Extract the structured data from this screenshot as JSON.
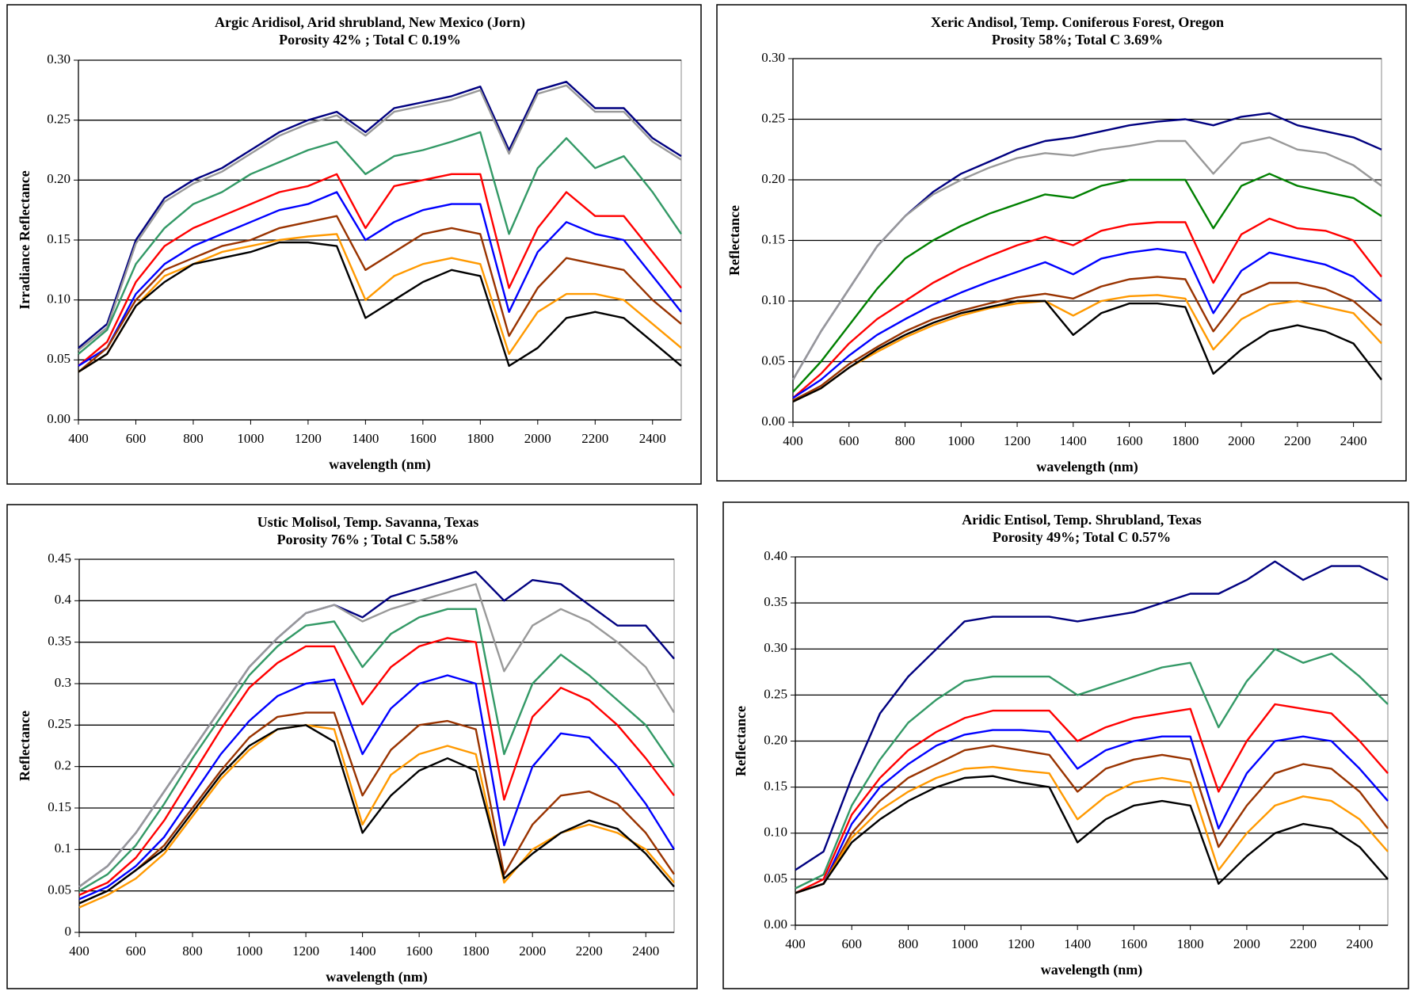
{
  "chart_data": [
    {
      "type": "line",
      "title": "Argic Aridisol, Arid shrubland, New Mexico (Jorn)",
      "subtitle": "Porosity 42% ;  Total C 0.19%",
      "x_label": "wavelength (nm)",
      "y_label": "Irradiance Reflectance",
      "x": [
        400,
        500,
        600,
        700,
        800,
        900,
        1000,
        1100,
        1200,
        1300,
        1400,
        1500,
        1600,
        1700,
        1800,
        1900,
        2000,
        2100,
        2200,
        2300,
        2400,
        2500
      ],
      "xlim": [
        400,
        2500
      ],
      "xticks": [
        400,
        600,
        800,
        1000,
        1200,
        1400,
        1600,
        1800,
        2000,
        2200,
        2400
      ],
      "ylim": [
        0,
        0.3
      ],
      "yticks": [
        {
          "value": 0,
          "label": "0.00"
        },
        0.05,
        {
          "value": 0.1,
          "label": "0.10"
        },
        0.15,
        {
          "value": 0.2,
          "label": "0.20"
        },
        0.25,
        {
          "value": 0.3,
          "label": "0.30"
        }
      ],
      "grid": true,
      "series": [
        {
          "color": "#000080",
          "values": [
            0.06,
            0.08,
            0.15,
            0.185,
            0.2,
            0.21,
            0.225,
            0.24,
            0.25,
            0.257,
            0.24,
            0.26,
            0.265,
            0.27,
            0.278,
            0.225,
            0.275,
            0.282,
            0.26,
            0.26,
            0.235,
            0.22
          ]
        },
        {
          "color": "#999999",
          "values": [
            0.058,
            0.077,
            0.147,
            0.182,
            0.197,
            0.207,
            0.222,
            0.237,
            0.247,
            0.254,
            0.237,
            0.257,
            0.262,
            0.267,
            0.275,
            0.222,
            0.272,
            0.279,
            0.257,
            0.257,
            0.232,
            0.217
          ]
        },
        {
          "color": "#339966",
          "values": [
            0.055,
            0.075,
            0.13,
            0.16,
            0.18,
            0.19,
            0.205,
            0.215,
            0.225,
            0.232,
            0.205,
            0.22,
            0.225,
            0.232,
            0.24,
            0.155,
            0.21,
            0.235,
            0.21,
            0.22,
            0.19,
            0.155
          ]
        },
        {
          "color": "#ff0000",
          "values": [
            0.045,
            0.065,
            0.115,
            0.145,
            0.16,
            0.17,
            0.18,
            0.19,
            0.195,
            0.205,
            0.16,
            0.195,
            0.2,
            0.205,
            0.205,
            0.11,
            0.16,
            0.19,
            0.17,
            0.17,
            0.14,
            0.11
          ]
        },
        {
          "color": "#0000ff",
          "values": [
            0.045,
            0.06,
            0.105,
            0.13,
            0.145,
            0.155,
            0.165,
            0.175,
            0.18,
            0.19,
            0.15,
            0.165,
            0.175,
            0.18,
            0.18,
            0.09,
            0.14,
            0.165,
            0.155,
            0.15,
            0.12,
            0.09
          ]
        },
        {
          "color": "#993300",
          "values": [
            0.04,
            0.06,
            0.1,
            0.125,
            0.135,
            0.145,
            0.15,
            0.16,
            0.165,
            0.17,
            0.125,
            0.14,
            0.155,
            0.16,
            0.155,
            0.07,
            0.11,
            0.135,
            0.13,
            0.125,
            0.1,
            0.08
          ]
        },
        {
          "color": "#ff9900",
          "values": [
            0.04,
            0.055,
            0.095,
            0.12,
            0.13,
            0.14,
            0.145,
            0.15,
            0.153,
            0.155,
            0.1,
            0.12,
            0.13,
            0.135,
            0.13,
            0.055,
            0.09,
            0.105,
            0.105,
            0.1,
            0.08,
            0.06
          ]
        },
        {
          "color": "#000000",
          "values": [
            0.04,
            0.055,
            0.095,
            0.115,
            0.13,
            0.135,
            0.14,
            0.148,
            0.148,
            0.145,
            0.085,
            0.1,
            0.115,
            0.125,
            0.12,
            0.045,
            0.06,
            0.085,
            0.09,
            0.085,
            0.065,
            0.045
          ]
        }
      ]
    },
    {
      "type": "line",
      "title": "Xeric Andisol, Temp. Coniferous Forest, Oregon",
      "subtitle": "Prosity  58%;  Total C  3.69%",
      "x_label": "wavelength (nm)",
      "y_label": "Reflectance",
      "x": [
        400,
        500,
        600,
        700,
        800,
        900,
        1000,
        1100,
        1200,
        1300,
        1400,
        1500,
        1600,
        1700,
        1800,
        1900,
        2000,
        2100,
        2200,
        2300,
        2400,
        2500
      ],
      "xlim": [
        400,
        2500
      ],
      "xticks": [
        400,
        600,
        800,
        1000,
        1200,
        1400,
        1600,
        1800,
        2000,
        2200,
        2400
      ],
      "ylim": [
        0,
        0.3
      ],
      "yticks": [
        {
          "value": 0,
          "label": "0.00"
        },
        0.05,
        {
          "value": 0.1,
          "label": "0.10"
        },
        0.15,
        {
          "value": 0.2,
          "label": "0.20"
        },
        0.25,
        {
          "value": 0.3,
          "label": "0.30"
        }
      ],
      "grid": true,
      "series": [
        {
          "color": "#000080",
          "values": [
            0.035,
            0.075,
            0.11,
            0.145,
            0.17,
            0.19,
            0.205,
            0.215,
            0.225,
            0.232,
            0.235,
            0.24,
            0.245,
            0.248,
            0.25,
            0.245,
            0.252,
            0.255,
            0.245,
            0.24,
            0.235,
            0.225
          ]
        },
        {
          "color": "#999999",
          "values": [
            0.035,
            0.075,
            0.11,
            0.145,
            0.17,
            0.188,
            0.2,
            0.21,
            0.218,
            0.222,
            0.22,
            0.225,
            0.228,
            0.232,
            0.232,
            0.205,
            0.23,
            0.235,
            0.225,
            0.222,
            0.212,
            0.195
          ]
        },
        {
          "color": "#008000",
          "values": [
            0.025,
            0.05,
            0.08,
            0.11,
            0.135,
            0.15,
            0.162,
            0.172,
            0.18,
            0.188,
            0.185,
            0.195,
            0.2,
            0.2,
            0.2,
            0.16,
            0.195,
            0.205,
            0.195,
            0.19,
            0.185,
            0.17
          ]
        },
        {
          "color": "#ff0000",
          "values": [
            0.02,
            0.04,
            0.065,
            0.085,
            0.1,
            0.115,
            0.127,
            0.137,
            0.146,
            0.153,
            0.146,
            0.158,
            0.163,
            0.165,
            0.165,
            0.115,
            0.155,
            0.168,
            0.16,
            0.158,
            0.15,
            0.12
          ]
        },
        {
          "color": "#0000ff",
          "values": [
            0.02,
            0.035,
            0.055,
            0.072,
            0.085,
            0.097,
            0.107,
            0.116,
            0.124,
            0.132,
            0.122,
            0.135,
            0.14,
            0.143,
            0.14,
            0.09,
            0.125,
            0.14,
            0.135,
            0.13,
            0.12,
            0.1
          ]
        },
        {
          "color": "#993300",
          "values": [
            0.018,
            0.03,
            0.048,
            0.062,
            0.075,
            0.085,
            0.092,
            0.098,
            0.103,
            0.106,
            0.102,
            0.112,
            0.118,
            0.12,
            0.118,
            0.075,
            0.105,
            0.115,
            0.115,
            0.11,
            0.1,
            0.08
          ]
        },
        {
          "color": "#ff9900",
          "values": [
            0.017,
            0.028,
            0.045,
            0.058,
            0.07,
            0.08,
            0.088,
            0.094,
            0.098,
            0.1,
            0.088,
            0.1,
            0.104,
            0.105,
            0.102,
            0.06,
            0.085,
            0.097,
            0.1,
            0.095,
            0.09,
            0.065
          ]
        },
        {
          "color": "#000000",
          "values": [
            0.017,
            0.028,
            0.045,
            0.06,
            0.072,
            0.082,
            0.09,
            0.095,
            0.1,
            0.1,
            0.072,
            0.09,
            0.098,
            0.098,
            0.095,
            0.04,
            0.06,
            0.075,
            0.08,
            0.075,
            0.065,
            0.035
          ]
        }
      ]
    },
    {
      "type": "line",
      "title": "Ustic Molisol, Temp. Savanna, Texas",
      "subtitle": "Porosity 76% ;  Total C 5.58%",
      "x_label": "wavelength (nm)",
      "y_label": "Reflectance",
      "x": [
        400,
        500,
        600,
        700,
        800,
        900,
        1000,
        1100,
        1200,
        1300,
        1400,
        1500,
        1600,
        1700,
        1800,
        1900,
        2000,
        2100,
        2200,
        2300,
        2400,
        2500
      ],
      "xlim": [
        400,
        2500
      ],
      "xticks": [
        400,
        600,
        800,
        1000,
        1200,
        1400,
        1600,
        1800,
        2000,
        2200,
        2400
      ],
      "ylim": [
        0,
        0.45
      ],
      "yticks": [
        0,
        0.05,
        0.1,
        0.15,
        0.2,
        0.25,
        0.3,
        0.35,
        0.4,
        0.45
      ],
      "grid": true,
      "series": [
        {
          "color": "#000080",
          "values": [
            0.055,
            0.08,
            0.12,
            0.17,
            0.22,
            0.27,
            0.32,
            0.355,
            0.385,
            0.395,
            0.38,
            0.405,
            0.415,
            0.425,
            0.435,
            0.4,
            0.425,
            0.42,
            0.395,
            0.37,
            0.37,
            0.33
          ]
        },
        {
          "color": "#999999",
          "values": [
            0.055,
            0.08,
            0.12,
            0.17,
            0.22,
            0.27,
            0.32,
            0.355,
            0.385,
            0.395,
            0.375,
            0.39,
            0.4,
            0.41,
            0.42,
            0.315,
            0.37,
            0.39,
            0.375,
            0.35,
            0.32,
            0.265
          ]
        },
        {
          "color": "#339966",
          "values": [
            0.05,
            0.07,
            0.105,
            0.155,
            0.21,
            0.26,
            0.31,
            0.345,
            0.37,
            0.375,
            0.32,
            0.36,
            0.38,
            0.39,
            0.39,
            0.215,
            0.3,
            0.335,
            0.31,
            0.28,
            0.25,
            0.2
          ]
        },
        {
          "color": "#ff0000",
          "values": [
            0.045,
            0.06,
            0.09,
            0.135,
            0.19,
            0.245,
            0.295,
            0.325,
            0.345,
            0.345,
            0.275,
            0.32,
            0.345,
            0.355,
            0.35,
            0.16,
            0.26,
            0.295,
            0.28,
            0.25,
            0.21,
            0.165
          ]
        },
        {
          "color": "#0000ff",
          "values": [
            0.04,
            0.055,
            0.08,
            0.115,
            0.165,
            0.215,
            0.255,
            0.285,
            0.3,
            0.305,
            0.215,
            0.27,
            0.3,
            0.31,
            0.3,
            0.105,
            0.2,
            0.24,
            0.235,
            0.2,
            0.155,
            0.1
          ]
        },
        {
          "color": "#993300",
          "values": [
            0.035,
            0.05,
            0.075,
            0.105,
            0.15,
            0.195,
            0.235,
            0.26,
            0.265,
            0.265,
            0.165,
            0.22,
            0.25,
            0.255,
            0.245,
            0.07,
            0.13,
            0.165,
            0.17,
            0.155,
            0.12,
            0.07
          ]
        },
        {
          "color": "#ff9900",
          "values": [
            0.03,
            0.045,
            0.065,
            0.095,
            0.14,
            0.185,
            0.22,
            0.245,
            0.25,
            0.245,
            0.13,
            0.19,
            0.215,
            0.225,
            0.215,
            0.06,
            0.1,
            0.12,
            0.13,
            0.12,
            0.1,
            0.06
          ]
        },
        {
          "color": "#000000",
          "values": [
            0.035,
            0.05,
            0.075,
            0.1,
            0.145,
            0.19,
            0.225,
            0.245,
            0.25,
            0.23,
            0.12,
            0.165,
            0.195,
            0.21,
            0.195,
            0.065,
            0.095,
            0.12,
            0.135,
            0.125,
            0.095,
            0.055
          ]
        }
      ]
    },
    {
      "type": "line",
      "title": "Aridic Entisol, Temp. Shrubland, Texas",
      "subtitle": "Porosity 49%;  Total C 0.57%",
      "x_label": "wavelength (nm)",
      "y_label": "Reflectance",
      "x": [
        400,
        500,
        600,
        700,
        800,
        900,
        1000,
        1100,
        1200,
        1300,
        1400,
        1500,
        1600,
        1700,
        1800,
        1900,
        2000,
        2100,
        2200,
        2300,
        2400,
        2500
      ],
      "xlim": [
        400,
        2500
      ],
      "xticks": [
        400,
        600,
        800,
        1000,
        1200,
        1400,
        1600,
        1800,
        2000,
        2200,
        2400
      ],
      "ylim": [
        0,
        0.4
      ],
      "yticks": [
        {
          "value": 0,
          "label": "0.00"
        },
        0.05,
        {
          "value": 0.1,
          "label": "0.10"
        },
        0.15,
        {
          "value": 0.2,
          "label": "0.20"
        },
        0.25,
        {
          "value": 0.3,
          "label": "0.30"
        },
        0.35,
        {
          "value": 0.4,
          "label": "0.40"
        }
      ],
      "grid": true,
      "series": [
        {
          "color": "#000080",
          "values": [
            0.06,
            0.08,
            0.16,
            0.23,
            0.27,
            0.3,
            0.33,
            0.335,
            0.335,
            0.335,
            0.33,
            0.335,
            0.34,
            0.35,
            0.36,
            0.36,
            0.375,
            0.395,
            0.375,
            0.39,
            0.39,
            0.375
          ]
        },
        {
          "color": "#339966",
          "values": [
            0.04,
            0.055,
            0.13,
            0.18,
            0.22,
            0.245,
            0.265,
            0.27,
            0.27,
            0.27,
            0.25,
            0.26,
            0.27,
            0.28,
            0.285,
            0.215,
            0.265,
            0.3,
            0.285,
            0.295,
            0.27,
            0.24
          ]
        },
        {
          "color": "#ff0000",
          "values": [
            0.035,
            0.05,
            0.12,
            0.16,
            0.19,
            0.21,
            0.225,
            0.233,
            0.233,
            0.233,
            0.2,
            0.215,
            0.225,
            0.23,
            0.235,
            0.145,
            0.2,
            0.24,
            0.235,
            0.23,
            0.2,
            0.165
          ]
        },
        {
          "color": "#0000ff",
          "values": [
            0.035,
            0.045,
            0.11,
            0.15,
            0.175,
            0.195,
            0.207,
            0.212,
            0.212,
            0.21,
            0.17,
            0.19,
            0.2,
            0.205,
            0.205,
            0.105,
            0.165,
            0.2,
            0.205,
            0.2,
            0.17,
            0.135
          ]
        },
        {
          "color": "#993300",
          "values": [
            0.035,
            0.045,
            0.1,
            0.135,
            0.16,
            0.175,
            0.19,
            0.195,
            0.19,
            0.185,
            0.145,
            0.17,
            0.18,
            0.185,
            0.18,
            0.085,
            0.13,
            0.165,
            0.175,
            0.17,
            0.145,
            0.105
          ]
        },
        {
          "color": "#ff9900",
          "values": [
            0.035,
            0.045,
            0.095,
            0.125,
            0.145,
            0.16,
            0.17,
            0.172,
            0.168,
            0.165,
            0.115,
            0.14,
            0.155,
            0.16,
            0.155,
            0.06,
            0.1,
            0.13,
            0.14,
            0.135,
            0.115,
            0.08
          ]
        },
        {
          "color": "#000000",
          "values": [
            0.035,
            0.045,
            0.09,
            0.115,
            0.135,
            0.15,
            0.16,
            0.162,
            0.155,
            0.15,
            0.09,
            0.115,
            0.13,
            0.135,
            0.13,
            0.045,
            0.075,
            0.1,
            0.11,
            0.105,
            0.085,
            0.05
          ]
        }
      ]
    }
  ]
}
